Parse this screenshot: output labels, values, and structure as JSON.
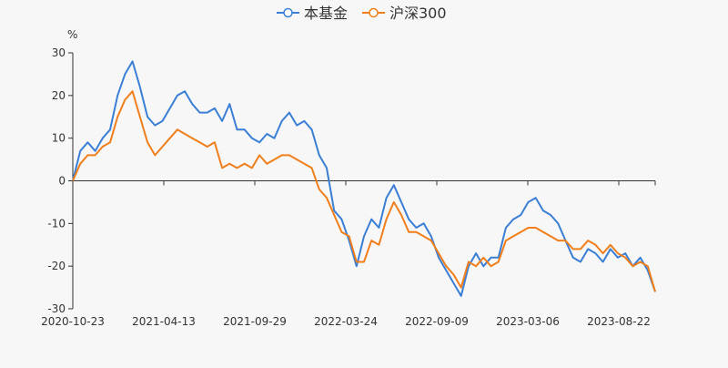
{
  "chart_data": {
    "type": "line",
    "title": "",
    "unit_label": "%",
    "ylabel": "%",
    "xlabel": "",
    "ylim": [
      -30,
      30
    ],
    "y_ticks": [
      30,
      20,
      10,
      0,
      -10,
      -20,
      -30
    ],
    "x_tick_labels": [
      "2020-10-23",
      "2021-04-13",
      "2021-09-29",
      "2022-03-24",
      "2022-09-09",
      "2023-03-06",
      "2023-08-22"
    ],
    "grid": false,
    "legend_position": "top-center",
    "series": [
      {
        "name": "本基金",
        "color": "#3a7fd5",
        "values": [
          0,
          7,
          9,
          7,
          10,
          12,
          20,
          25,
          28,
          22,
          15,
          13,
          14,
          17,
          20,
          21,
          18,
          16,
          16,
          17,
          14,
          18,
          12,
          12,
          10,
          9,
          11,
          10,
          14,
          16,
          13,
          14,
          12,
          6,
          3,
          -7,
          -9,
          -14,
          -20,
          -13,
          -9,
          -11,
          -4,
          -1,
          -5,
          -9,
          -11,
          -10,
          -13,
          -18,
          -21,
          -24,
          -27,
          -20,
          -17,
          -20,
          -18,
          -18,
          -11,
          -9,
          -8,
          -5,
          -4,
          -7,
          -8,
          -10,
          -14,
          -18,
          -19,
          -16,
          -17,
          -19,
          -16,
          -18,
          -17,
          -20,
          -18,
          -21,
          -26
        ]
      },
      {
        "name": "沪深300",
        "color": "#f07f1b",
        "values": [
          0,
          4,
          6,
          6,
          8,
          9,
          15,
          19,
          21,
          15,
          9,
          6,
          8,
          10,
          12,
          11,
          10,
          9,
          8,
          9,
          3,
          4,
          3,
          4,
          3,
          6,
          4,
          5,
          6,
          6,
          5,
          4,
          3,
          -2,
          -4,
          -8,
          -12,
          -13,
          -19,
          -19,
          -14,
          -15,
          -9,
          -5,
          -8,
          -12,
          -12,
          -13,
          -14,
          -17,
          -20,
          -22,
          -25,
          -19,
          -20,
          -18,
          -20,
          -19,
          -14,
          -13,
          -12,
          -11,
          -11,
          -12,
          -13,
          -14,
          -14,
          -16,
          -16,
          -14,
          -15,
          -17,
          -15,
          -17,
          -18,
          -20,
          -19,
          -20,
          -26
        ]
      }
    ]
  }
}
